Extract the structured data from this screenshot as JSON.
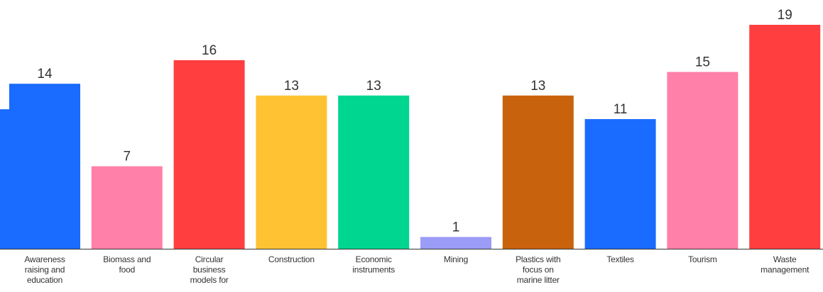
{
  "chart_data": {
    "type": "bar",
    "title": "",
    "xlabel": "",
    "ylabel": "",
    "ylim": [
      0,
      20
    ],
    "grid": false,
    "legend": "none",
    "categories": [
      [
        "Awareness",
        "raising and",
        "education"
      ],
      [
        "Biomass and",
        "food"
      ],
      [
        "Circular",
        "business",
        "models for"
      ],
      [
        "Construction"
      ],
      [
        "Economic",
        "instruments"
      ],
      [
        "Mining"
      ],
      [
        "Plastics with",
        "focus on",
        "marine litter"
      ],
      [
        "Textiles"
      ],
      [
        "Tourism"
      ],
      [
        "Waste",
        "management"
      ]
    ],
    "values": [
      14,
      7,
      16,
      13,
      13,
      1,
      13,
      11,
      15,
      19
    ],
    "colors": [
      "#1a6bff",
      "#ff80a8",
      "#ff3f3f",
      "#ffc233",
      "#00d68f",
      "#9b9cf5",
      "#c9620c",
      "#1a6bff",
      "#ff80a8",
      "#ff3f3f"
    ]
  }
}
